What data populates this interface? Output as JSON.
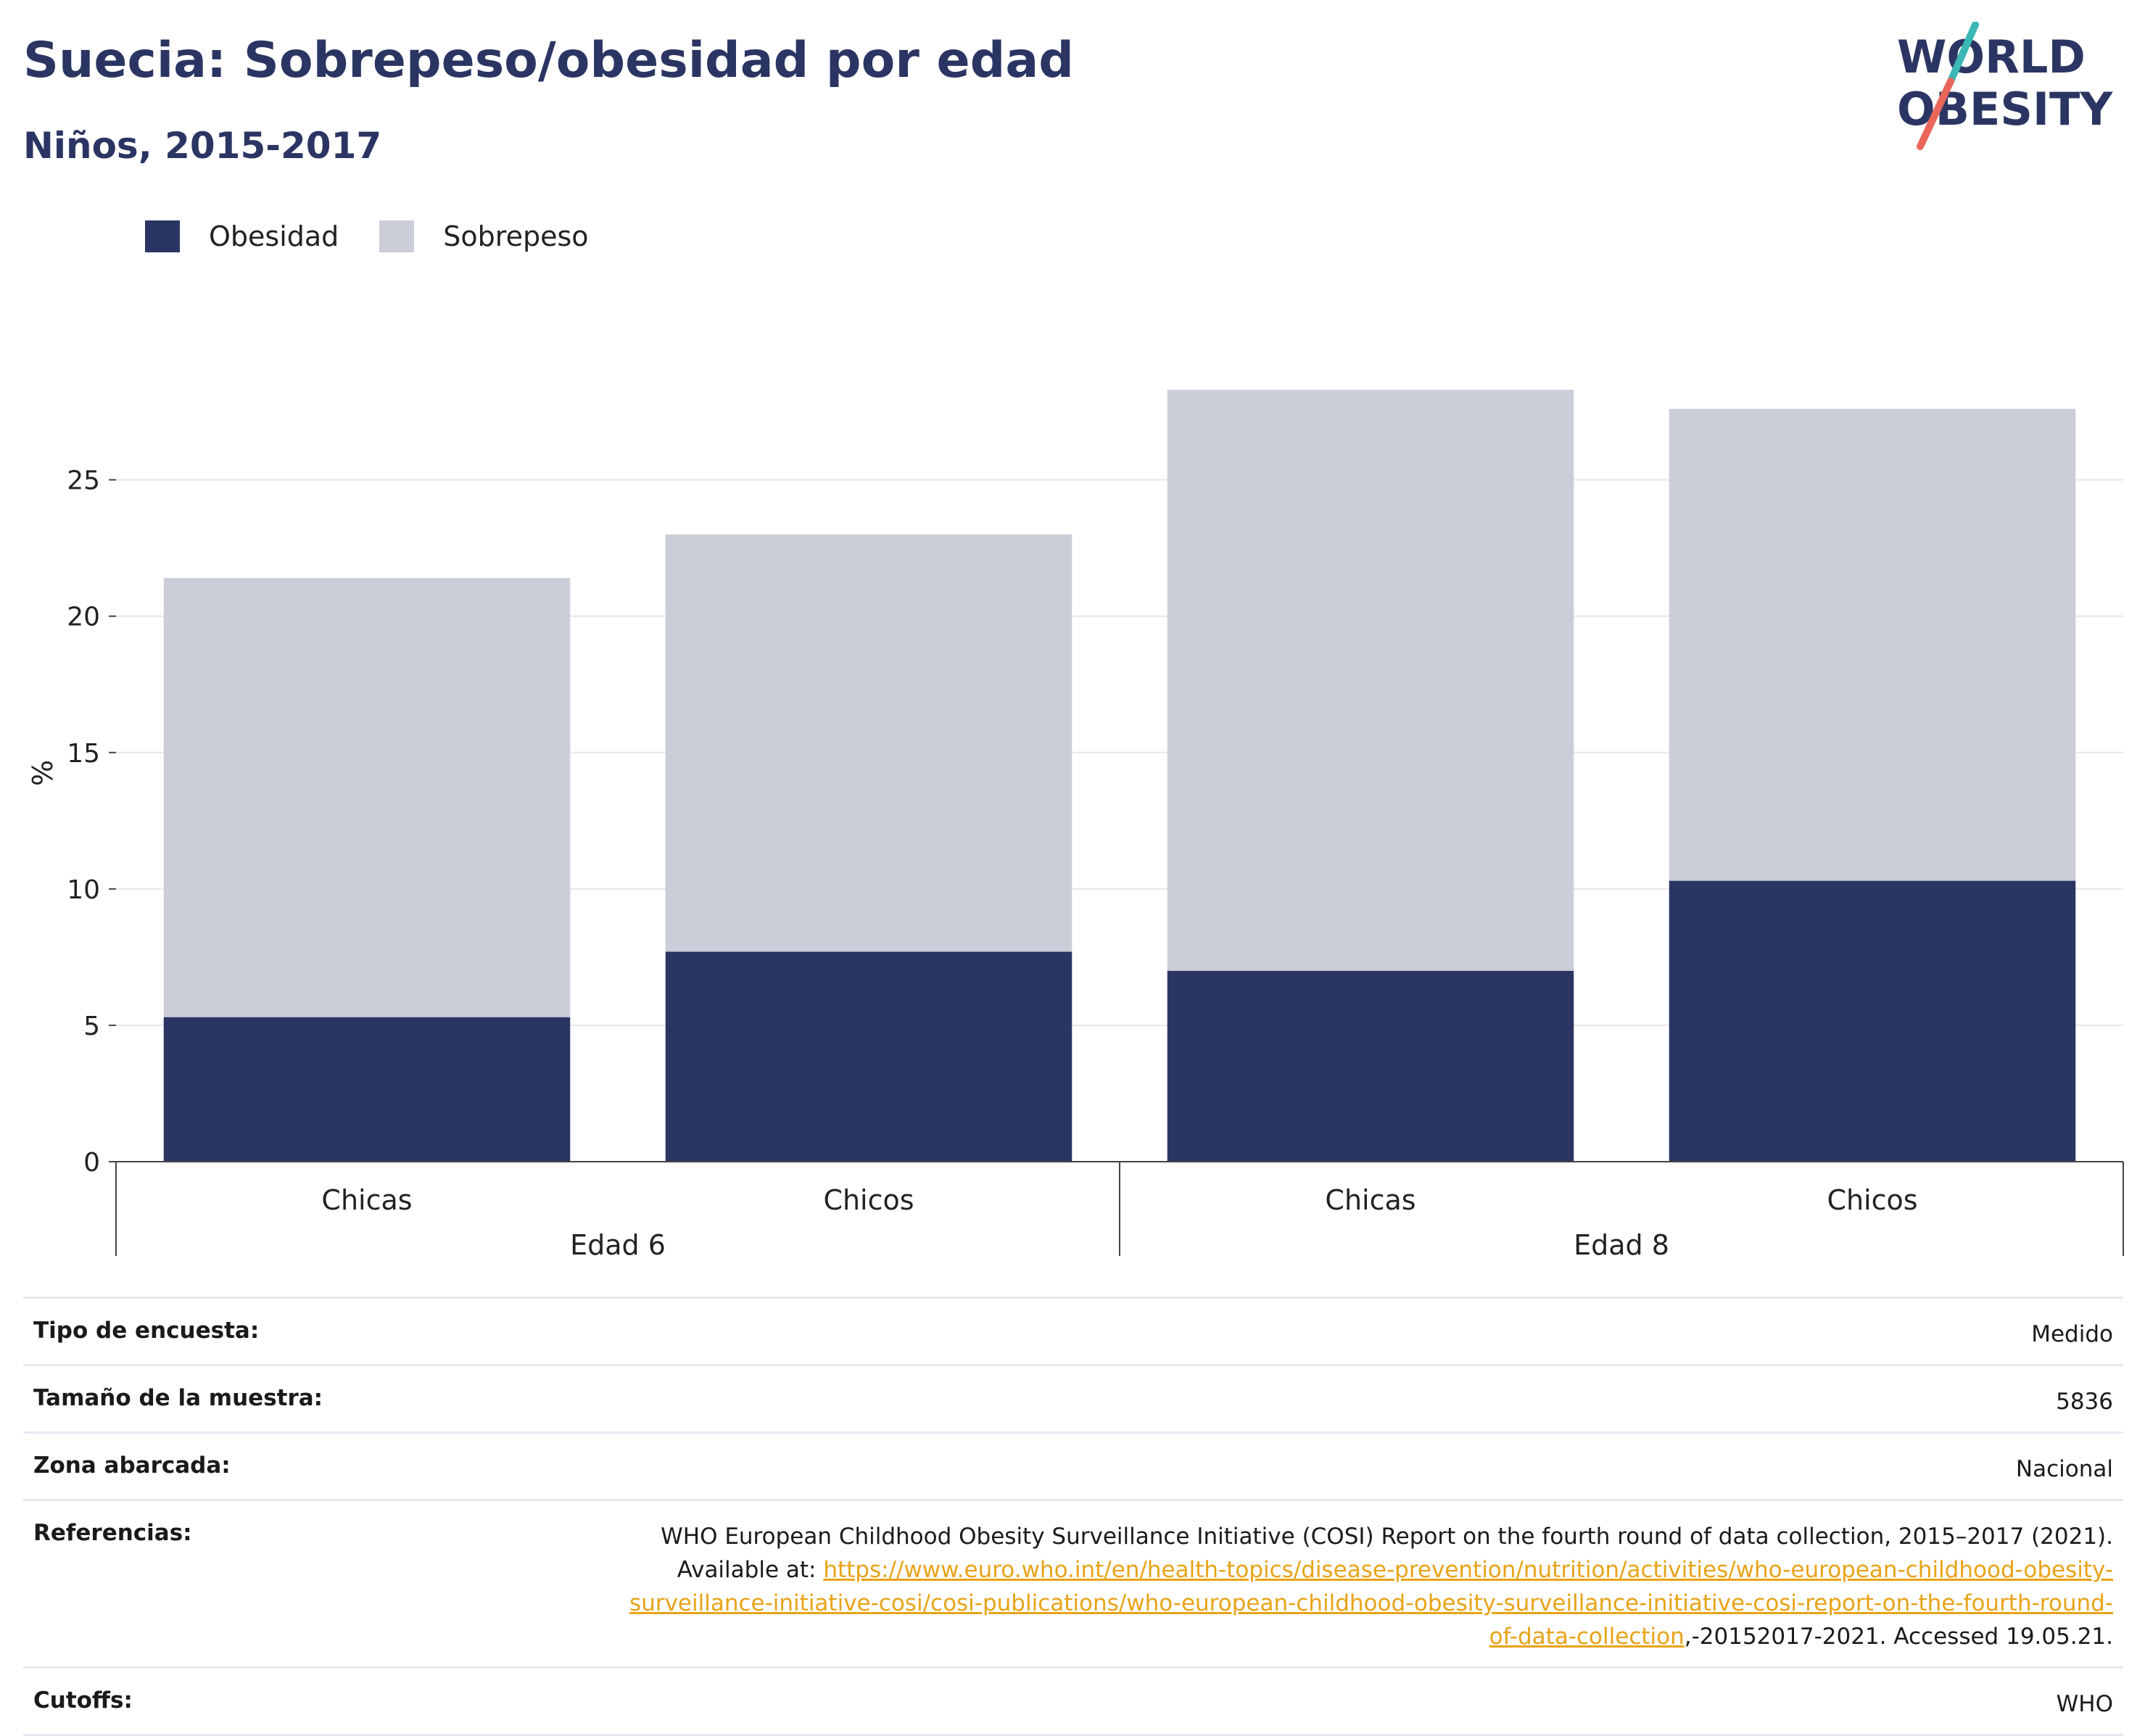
{
  "header": {
    "title": "Suecia: Sobrepeso/obesidad por edad",
    "subtitle": "Niños, 2015-2017"
  },
  "logo": {
    "line1": "WORLD",
    "line2": "OBESITY",
    "colors": {
      "text": "#2b3563",
      "slash_top": "#3bb7b5",
      "slash_bottom": "#e8675a"
    }
  },
  "legend": [
    {
      "label": "Obesidad",
      "color": "#2b3563"
    },
    {
      "label": "Sobrepeso",
      "color": "#cbcdd8"
    }
  ],
  "chart_data": {
    "type": "bar",
    "stacked": true,
    "ylabel": "%",
    "ylim": [
      0,
      28.5
    ],
    "yticks": [
      0,
      5,
      10,
      15,
      20,
      25
    ],
    "grid": true,
    "legend_position": "top-left",
    "categories": [
      "Chicas",
      "Chicos",
      "Chicas",
      "Chicos"
    ],
    "groups": [
      {
        "label": "Edad 6",
        "categories": [
          0,
          1
        ]
      },
      {
        "label": "Edad 8",
        "categories": [
          2,
          3
        ]
      }
    ],
    "series": [
      {
        "name": "Obesidad",
        "color": "#2b3563",
        "values": [
          5.3,
          7.7,
          7.0,
          10.3
        ]
      },
      {
        "name": "Sobrepeso",
        "color": "#cbcdd8",
        "values": [
          16.1,
          15.3,
          21.3,
          17.3
        ]
      }
    ]
  },
  "meta": [
    {
      "label": "Tipo de encuesta:",
      "value": "Medido"
    },
    {
      "label": "Tamaño de la muestra:",
      "value": "5836"
    },
    {
      "label": "Zona abarcada:",
      "value": "Nacional"
    },
    {
      "label": "Referencias:",
      "value_pre": "WHO European Childhood Obesity Surveillance Initiative (COSI) Report on the fourth round of data collection, 2015–2017 (2021). Available at: ",
      "link": "https://www.euro.who.int/en/health-topics/disease-prevention/nutrition/activities/who-european-childhood-obesity-surveillance-initiative-cosi/cosi-publications/who-european-childhood-obesity-surveillance-initiative-cosi-report-on-the-fourth-round-of-data-collection",
      "value_post": ",-20152017-2021. Accessed 19.05.21."
    },
    {
      "label": "Cutoffs:",
      "value": "WHO"
    }
  ]
}
